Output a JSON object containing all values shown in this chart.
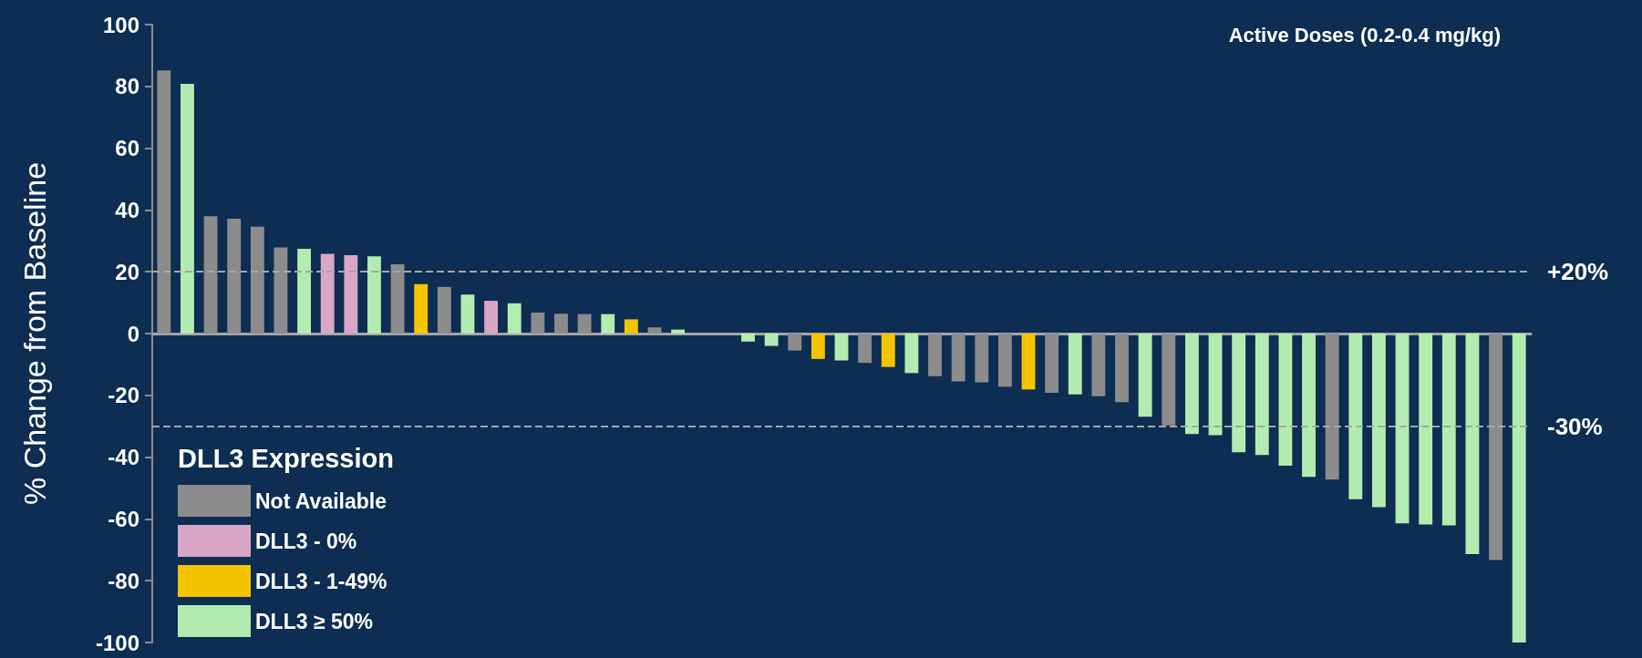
{
  "chart_data": {
    "type": "bar",
    "title": "Active Doses (0.2-0.4 mg/kg)",
    "ylabel": "% Change from Baseline",
    "legend_title": "DLL3 Expression",
    "legend": "bottom left",
    "grid": false,
    "categories": [
      null,
      null,
      null,
      null,
      null,
      null,
      null,
      null,
      null,
      null,
      null,
      null,
      null,
      null,
      null,
      null,
      null,
      null,
      null,
      null,
      null,
      null,
      null,
      null,
      null,
      null,
      null,
      null,
      null,
      null,
      null,
      null,
      null,
      null,
      null,
      null,
      null,
      null,
      null,
      null,
      null,
      null,
      null,
      null,
      null,
      null,
      null,
      null,
      null,
      null,
      null,
      null,
      null,
      null,
      null,
      null,
      null,
      null,
      null
    ],
    "ylim": [
      -100,
      100
    ],
    "yticks": [
      -100,
      -80,
      -60,
      -40,
      -20,
      0,
      20,
      40,
      60,
      80,
      100
    ],
    "series": [
      {
        "name": "Not Available",
        "color": "#8c8c8c",
        "values": [
          85.2,
          null,
          38,
          37.2,
          34.6,
          27.9,
          null,
          null,
          null,
          null,
          22.4,
          null,
          15.1,
          null,
          null,
          null,
          6.8,
          6.4,
          6.3,
          null,
          null,
          2,
          null,
          null,
          null,
          null,
          null,
          -5.5,
          null,
          null,
          -9.5,
          null,
          null,
          -13.8,
          -15.5,
          -15.8,
          -17.2,
          null,
          -19.2,
          null,
          -20.3,
          -22.2,
          null,
          -29.7,
          null,
          null,
          null,
          null,
          null,
          null,
          -47.3,
          null,
          null,
          null,
          null,
          null,
          null,
          -73.3,
          null
        ]
      },
      {
        "name": "DLL3 - 0%",
        "color": "#d9a6c8",
        "values": [
          null,
          null,
          null,
          null,
          null,
          null,
          null,
          25.8,
          25.4,
          null,
          null,
          null,
          null,
          null,
          10.6,
          null,
          null,
          null,
          null,
          null,
          null,
          null,
          null,
          null,
          null,
          null,
          null,
          null,
          null,
          null,
          null,
          null,
          null,
          null,
          null,
          null,
          null,
          null,
          null,
          null,
          null,
          null,
          null,
          null,
          null,
          null,
          null,
          null,
          null,
          null,
          null,
          null,
          null,
          null,
          null,
          null,
          null,
          null,
          null
        ]
      },
      {
        "name": "DLL3 - 1-49%",
        "color": "#f5c400",
        "values": [
          null,
          null,
          null,
          null,
          null,
          null,
          null,
          null,
          null,
          null,
          null,
          16,
          null,
          null,
          null,
          null,
          null,
          null,
          null,
          null,
          4.6,
          null,
          null,
          null,
          null,
          null,
          null,
          null,
          -8.2,
          null,
          null,
          -10.8,
          null,
          null,
          null,
          null,
          null,
          -18.1,
          null,
          null,
          null,
          null,
          null,
          null,
          null,
          null,
          null,
          null,
          null,
          null,
          null,
          null,
          null,
          null,
          null,
          null,
          null,
          null,
          null
        ]
      },
      {
        "name": "DLL3 ≥ 50%",
        "color": "#b3ecb0",
        "values": [
          null,
          80.8,
          null,
          null,
          null,
          null,
          27.4,
          null,
          null,
          25,
          null,
          null,
          null,
          12.6,
          null,
          9.8,
          null,
          null,
          null,
          6.3,
          null,
          null,
          1.3,
          0,
          0,
          -2.6,
          -4,
          null,
          null,
          -8.7,
          null,
          null,
          -12.8,
          null,
          null,
          null,
          null,
          null,
          null,
          -19.7,
          null,
          null,
          -26.9,
          null,
          -32.5,
          -32.9,
          -38.4,
          -39.3,
          -42.8,
          -46.4,
          null,
          -53.6,
          -56.2,
          -61.4,
          -61.8,
          -62.1,
          -71.4,
          null,
          -100
        ]
      }
    ],
    "ref_lines": [
      {
        "axis": "y",
        "value": 20,
        "label": "+20%",
        "color": "#a6a6a6",
        "line_style": "dashed"
      },
      {
        "axis": "y",
        "value": -30,
        "label": "-30%",
        "color": "#a6a6a6",
        "line_style": "dashed"
      }
    ]
  }
}
